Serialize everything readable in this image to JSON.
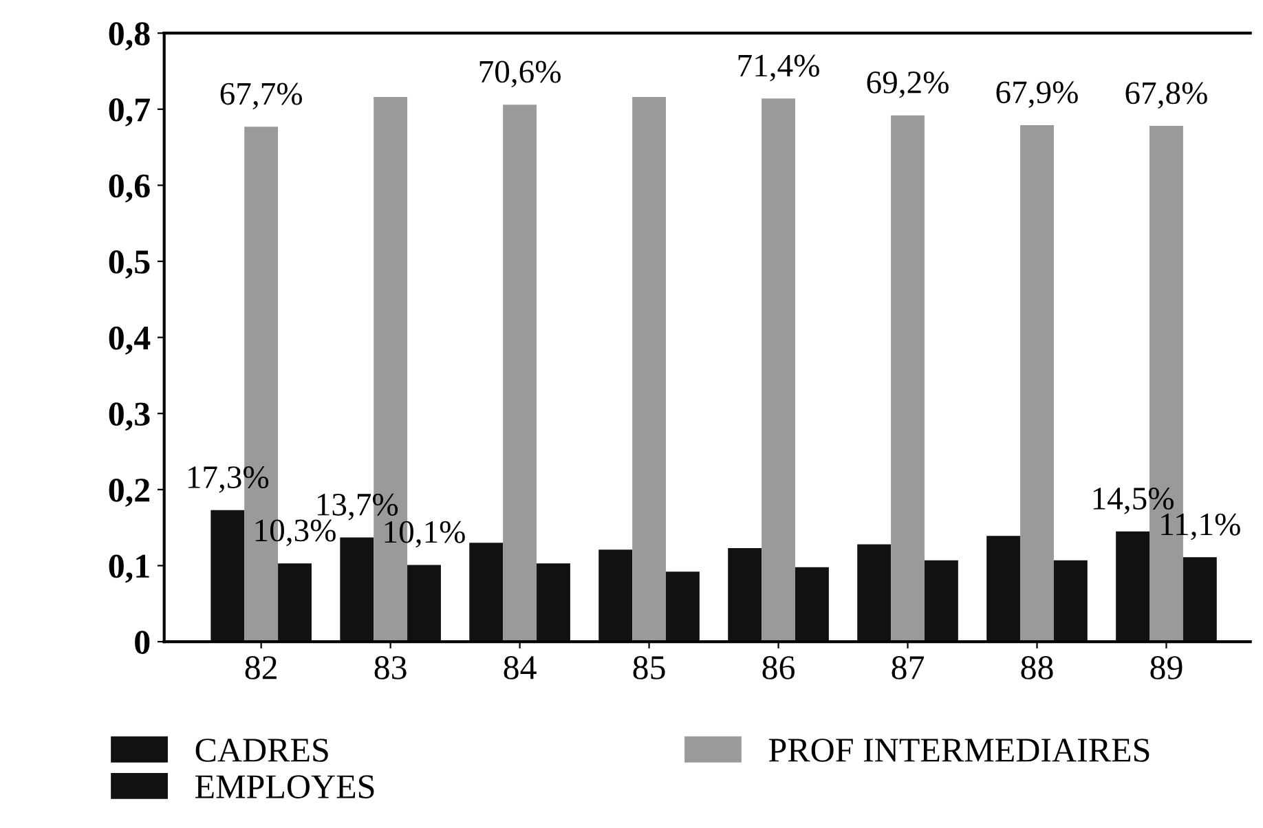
{
  "chart_data": {
    "type": "bar",
    "categories": [
      "82",
      "83",
      "84",
      "85",
      "86",
      "87",
      "88",
      "89"
    ],
    "series": [
      {
        "name": "CADRES",
        "color": "#111111",
        "values": [
          0.173,
          0.137,
          0.13,
          0.121,
          0.123,
          0.128,
          0.139,
          0.145
        ],
        "value_labels": [
          "17,3%",
          "13,7%",
          null,
          null,
          null,
          null,
          null,
          "14,5%"
        ]
      },
      {
        "name": "PROF INTERMEDIAIRES",
        "color": "#9a9a9a",
        "values": [
          0.677,
          0.716,
          0.706,
          0.716,
          0.714,
          0.692,
          0.679,
          0.678
        ],
        "value_labels": [
          "67,7%",
          null,
          "70,6%",
          null,
          "71,4%",
          "69,2%",
          "67,9%",
          "67,8%"
        ]
      },
      {
        "name": "EMPLOYES",
        "color": "#111111",
        "values": [
          0.103,
          0.101,
          0.103,
          0.092,
          0.098,
          0.107,
          0.107,
          0.111
        ],
        "value_labels": [
          "10,3%",
          "10,1%",
          null,
          null,
          null,
          null,
          null,
          "11,1%"
        ]
      }
    ],
    "ylim": [
      0,
      0.8
    ],
    "yticks": [
      {
        "value": 0,
        "label": "0"
      },
      {
        "value": 0.1,
        "label": "0,1"
      },
      {
        "value": 0.2,
        "label": "0,2"
      },
      {
        "value": 0.3,
        "label": "0,3"
      },
      {
        "value": 0.4,
        "label": "0,4"
      },
      {
        "value": 0.5,
        "label": "0,5"
      },
      {
        "value": 0.6,
        "label": "0,6"
      },
      {
        "value": 0.7,
        "label": "0,7"
      },
      {
        "value": 0.8,
        "label": "0,8"
      }
    ],
    "grid": false,
    "legend": "bottom"
  }
}
